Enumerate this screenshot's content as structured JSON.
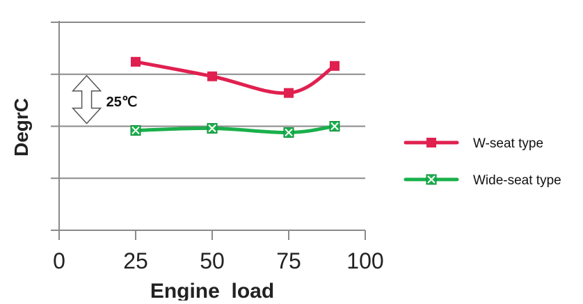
{
  "chart_data": {
    "type": "line",
    "xlabel": "Engine  load",
    "ylabel": "DegrC",
    "x_ticks": [
      "0",
      "25",
      "50",
      "75",
      "100"
    ],
    "xlim": [
      0,
      100
    ],
    "ylim": [
      -75,
      25
    ],
    "y_tick_values": [
      -75,
      -50,
      -25,
      0,
      25
    ],
    "y_tick_labels_shown": false,
    "grid": "horizontal",
    "legend_position": "right",
    "annotation": {
      "label": "25℃",
      "from": -25,
      "to": 0,
      "x": 9
    },
    "series": [
      {
        "name": "W-seat type",
        "color": "#e0204f",
        "marker": "square",
        "x": [
          25,
          50,
          75,
          90
        ],
        "y": [
          6,
          -1,
          -9,
          4
        ]
      },
      {
        "name": "Wide-seat type",
        "color": "#19b04b",
        "marker": "square-x",
        "x": [
          25,
          50,
          75,
          90
        ],
        "y": [
          -27,
          -26,
          -28,
          -25
        ]
      }
    ]
  }
}
